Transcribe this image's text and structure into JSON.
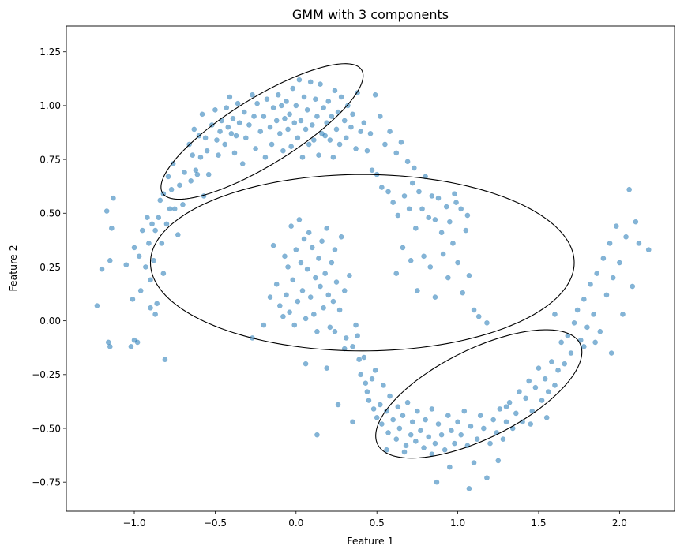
{
  "chart_data": {
    "type": "scatter",
    "title": "GMM with 3 components",
    "xlabel": "Feature 1",
    "ylabel": "Feature 2",
    "xlim": [
      -1.42,
      2.34
    ],
    "ylim": [
      -0.885,
      1.37
    ],
    "xticks": [
      -1.0,
      -0.5,
      0.0,
      0.5,
      1.0,
      1.5,
      2.0
    ],
    "yticks": [
      -0.75,
      -0.5,
      -0.25,
      0.0,
      0.25,
      0.5,
      0.75,
      1.0,
      1.25
    ],
    "xtick_labels": [
      "−1.0",
      "−0.5",
      "0.0",
      "0.5",
      "1.0",
      "1.5",
      "2.0"
    ],
    "ytick_labels": [
      "−0.75",
      "−0.50",
      "−0.25",
      "0.00",
      "0.25",
      "0.50",
      "0.75",
      "1.00",
      "1.25"
    ],
    "grid": false,
    "point_color": "#1f77b4",
    "point_alpha": 0.55,
    "ellipse_color": "#000000",
    "ellipses": [
      {
        "cx": -0.21,
        "cy": 0.88,
        "rx": 0.68,
        "ry": 0.165,
        "angle_deg": 24
      },
      {
        "cx": 0.41,
        "cy": 0.27,
        "rx": 1.31,
        "ry": 0.41,
        "angle_deg": 0
      },
      {
        "cx": 1.13,
        "cy": -0.34,
        "rx": 0.67,
        "ry": 0.215,
        "angle_deg": 19
      }
    ],
    "points": [
      [
        -1.23,
        0.07
      ],
      [
        -1.2,
        0.24
      ],
      [
        -1.17,
        0.51
      ],
      [
        -1.16,
        -0.1
      ],
      [
        -1.15,
        0.28
      ],
      [
        -1.15,
        -0.12
      ],
      [
        -1.14,
        0.43
      ],
      [
        -1.13,
        0.57
      ],
      [
        -1.05,
        0.26
      ],
      [
        -1.02,
        -0.12
      ],
      [
        -1.01,
        0.1
      ],
      [
        -1.0,
        0.34
      ],
      [
        -1.0,
        -0.09
      ],
      [
        -0.98,
        -0.1
      ],
      [
        -0.97,
        0.3
      ],
      [
        -0.96,
        0.14
      ],
      [
        -0.95,
        0.42
      ],
      [
        -0.93,
        0.25
      ],
      [
        -0.92,
        0.48
      ],
      [
        -0.91,
        0.36
      ],
      [
        -0.9,
        0.19
      ],
      [
        -0.9,
        0.06
      ],
      [
        -0.89,
        0.45
      ],
      [
        -0.88,
        0.28
      ],
      [
        -0.87,
        0.03
      ],
      [
        -0.87,
        0.42
      ],
      [
        -0.86,
        0.08
      ],
      [
        -0.85,
        0.48
      ],
      [
        -0.84,
        0.56
      ],
      [
        -0.83,
        0.36
      ],
      [
        -0.82,
        0.22
      ],
      [
        -0.82,
        0.59
      ],
      [
        -0.81,
        -0.18
      ],
      [
        -0.8,
        0.45
      ],
      [
        -0.79,
        0.67
      ],
      [
        -0.78,
        0.52
      ],
      [
        -0.77,
        0.61
      ],
      [
        -0.76,
        0.73
      ],
      [
        -0.75,
        0.52
      ],
      [
        -0.73,
        0.4
      ],
      [
        -0.72,
        0.63
      ],
      [
        -0.7,
        0.54
      ],
      [
        -0.69,
        0.69
      ],
      [
        -0.66,
        0.82
      ],
      [
        -0.65,
        0.65
      ],
      [
        -0.64,
        0.77
      ],
      [
        -0.63,
        0.89
      ],
      [
        -0.62,
        0.7
      ],
      [
        -0.61,
        0.68
      ],
      [
        -0.6,
        0.86
      ],
      [
        -0.59,
        0.76
      ],
      [
        -0.58,
        0.96
      ],
      [
        -0.57,
        0.58
      ],
      [
        -0.56,
        0.85
      ],
      [
        -0.55,
        0.79
      ],
      [
        -0.54,
        0.68
      ],
      [
        -0.52,
        0.91
      ],
      [
        -0.5,
        0.98
      ],
      [
        -0.49,
        0.84
      ],
      [
        -0.48,
        0.77
      ],
      [
        -0.47,
        0.88
      ],
      [
        -0.46,
        0.93
      ],
      [
        -0.44,
        0.82
      ],
      [
        -0.43,
        0.99
      ],
      [
        -0.42,
        0.9
      ],
      [
        -0.41,
        1.04
      ],
      [
        -0.4,
        0.87
      ],
      [
        -0.39,
        0.94
      ],
      [
        -0.38,
        0.78
      ],
      [
        -0.37,
        0.86
      ],
      [
        -0.36,
        1.01
      ],
      [
        -0.35,
        0.92
      ],
      [
        -0.33,
        0.73
      ],
      [
        -0.32,
        0.97
      ],
      [
        -0.31,
        0.85
      ],
      [
        -0.29,
        0.91
      ],
      [
        -0.27,
        1.05
      ],
      [
        -0.26,
        0.95
      ],
      [
        -0.25,
        0.8
      ],
      [
        -0.24,
        1.01
      ],
      [
        -0.22,
        0.88
      ],
      [
        -0.2,
        0.95
      ],
      [
        -0.19,
        0.76
      ],
      [
        -0.18,
        1.03
      ],
      [
        -0.16,
        0.9
      ],
      [
        -0.15,
        0.82
      ],
      [
        -0.14,
        0.99
      ],
      [
        -0.12,
        0.93
      ],
      [
        -0.11,
        1.05
      ],
      [
        -0.1,
        0.87
      ],
      [
        -0.09,
        1.0
      ],
      [
        -0.08,
        0.79
      ],
      [
        -0.07,
        0.94
      ],
      [
        -0.06,
        1.02
      ],
      [
        -0.05,
        0.89
      ],
      [
        -0.04,
        0.96
      ],
      [
        -0.03,
        0.81
      ],
      [
        -0.02,
        1.08
      ],
      [
        -0.01,
        0.92
      ],
      [
        0.0,
        1.0
      ],
      [
        0.01,
        0.85
      ],
      [
        0.02,
        1.12
      ],
      [
        0.03,
        0.93
      ],
      [
        0.04,
        0.76
      ],
      [
        0.05,
        1.04
      ],
      [
        0.06,
        0.89
      ],
      [
        0.07,
        0.98
      ],
      [
        0.08,
        0.82
      ],
      [
        0.09,
        1.11
      ],
      [
        0.1,
        0.91
      ],
      [
        0.11,
        0.84
      ],
      [
        0.12,
        1.03
      ],
      [
        0.13,
        0.95
      ],
      [
        0.14,
        0.77
      ],
      [
        0.15,
        1.1
      ],
      [
        0.16,
        0.87
      ],
      [
        0.17,
        0.99
      ],
      [
        0.18,
        0.86
      ],
      [
        0.19,
        0.92
      ],
      [
        0.2,
        1.02
      ],
      [
        0.21,
        0.84
      ],
      [
        0.22,
        0.95
      ],
      [
        0.23,
        0.76
      ],
      [
        0.24,
        1.07
      ],
      [
        0.25,
        0.89
      ],
      [
        0.26,
        0.97
      ],
      [
        0.27,
        0.82
      ],
      [
        0.28,
        1.04
      ],
      [
        0.3,
        0.93
      ],
      [
        0.31,
        0.85
      ],
      [
        0.32,
        1.0
      ],
      [
        0.34,
        0.9
      ],
      [
        0.35,
        0.96
      ],
      [
        0.37,
        0.8
      ],
      [
        0.38,
        1.06
      ],
      [
        0.4,
        0.88
      ],
      [
        0.42,
        0.92
      ],
      [
        0.44,
        0.79
      ],
      [
        0.46,
        0.87
      ],
      [
        0.47,
        0.7
      ],
      [
        0.49,
        1.05
      ],
      [
        0.5,
        0.68
      ],
      [
        0.52,
        0.95
      ],
      [
        0.53,
        0.62
      ],
      [
        0.55,
        0.82
      ],
      [
        0.57,
        0.6
      ],
      [
        0.58,
        0.88
      ],
      [
        0.6,
        0.55
      ],
      [
        0.62,
        0.78
      ],
      [
        0.63,
        0.49
      ],
      [
        0.65,
        0.83
      ],
      [
        0.67,
        0.58
      ],
      [
        0.69,
        0.74
      ],
      [
        0.7,
        0.52
      ],
      [
        0.72,
        0.64
      ],
      [
        0.73,
        0.71
      ],
      [
        0.74,
        0.43
      ],
      [
        0.76,
        0.6
      ],
      [
        0.78,
        0.52
      ],
      [
        0.8,
        0.67
      ],
      [
        0.82,
        0.48
      ],
      [
        0.84,
        0.58
      ],
      [
        0.86,
        0.47
      ],
      [
        0.88,
        0.57
      ],
      [
        0.9,
        0.41
      ],
      [
        0.93,
        0.53
      ],
      [
        0.95,
        0.46
      ],
      [
        0.98,
        0.59
      ],
      [
        0.99,
        0.55
      ],
      [
        1.02,
        0.52
      ],
      [
        1.06,
        0.49
      ],
      [
        -0.14,
        0.35
      ],
      [
        -0.16,
        0.11
      ],
      [
        -0.12,
        0.17
      ],
      [
        -0.1,
        0.07
      ],
      [
        -0.08,
        0.02
      ],
      [
        -0.07,
        0.3
      ],
      [
        -0.06,
        0.12
      ],
      [
        -0.05,
        0.25
      ],
      [
        -0.04,
        0.04
      ],
      [
        -0.03,
        0.44
      ],
      [
        -0.02,
        0.19
      ],
      [
        -0.01,
        -0.02
      ],
      [
        0.0,
        0.33
      ],
      [
        0.01,
        0.09
      ],
      [
        0.02,
        0.47
      ],
      [
        0.03,
        0.27
      ],
      [
        0.04,
        0.14
      ],
      [
        0.05,
        0.38
      ],
      [
        0.06,
        0.01
      ],
      [
        0.07,
        0.24
      ],
      [
        0.08,
        0.41
      ],
      [
        0.09,
        0.11
      ],
      [
        0.1,
        0.34
      ],
      [
        0.11,
        0.03
      ],
      [
        0.12,
        0.2
      ],
      [
        0.13,
        -0.05
      ],
      [
        0.14,
        0.29
      ],
      [
        0.15,
        0.16
      ],
      [
        0.16,
        0.37
      ],
      [
        0.17,
        0.06
      ],
      [
        0.18,
        0.22
      ],
      [
        0.19,
        0.43
      ],
      [
        0.2,
        0.12
      ],
      [
        0.21,
        -0.03
      ],
      [
        0.22,
        0.27
      ],
      [
        0.23,
        0.09
      ],
      [
        0.24,
        0.33
      ],
      [
        0.25,
        0.18
      ],
      [
        0.27,
        0.05
      ],
      [
        0.28,
        0.39
      ],
      [
        0.3,
        0.14
      ],
      [
        0.31,
        -0.08
      ],
      [
        0.33,
        0.21
      ],
      [
        0.35,
        -0.12
      ],
      [
        0.37,
        -0.02
      ],
      [
        0.39,
        -0.18
      ],
      [
        0.4,
        -0.25
      ],
      [
        0.42,
        -0.17
      ],
      [
        0.43,
        -0.29
      ],
      [
        0.44,
        -0.33
      ],
      [
        0.45,
        -0.37
      ],
      [
        0.47,
        -0.27
      ],
      [
        0.48,
        -0.41
      ],
      [
        0.49,
        -0.23
      ],
      [
        0.5,
        -0.45
      ],
      [
        0.52,
        -0.39
      ],
      [
        0.53,
        -0.48
      ],
      [
        0.54,
        -0.3
      ],
      [
        0.56,
        -0.42
      ],
      [
        0.57,
        -0.52
      ],
      [
        0.58,
        -0.35
      ],
      [
        0.6,
        -0.46
      ],
      [
        0.62,
        -0.55
      ],
      [
        0.63,
        -0.4
      ],
      [
        0.64,
        -0.5
      ],
      [
        0.66,
        -0.44
      ],
      [
        0.68,
        -0.58
      ],
      [
        0.69,
        -0.38
      ],
      [
        0.71,
        -0.53
      ],
      [
        0.72,
        -0.47
      ],
      [
        0.74,
        -0.56
      ],
      [
        0.75,
        -0.42
      ],
      [
        0.77,
        -0.51
      ],
      [
        0.79,
        -0.59
      ],
      [
        0.8,
        -0.46
      ],
      [
        0.82,
        -0.54
      ],
      [
        0.84,
        -0.41
      ],
      [
        0.86,
        -0.57
      ],
      [
        0.87,
        -0.75
      ],
      [
        0.88,
        -0.48
      ],
      [
        0.9,
        -0.53
      ],
      [
        0.92,
        -0.6
      ],
      [
        0.94,
        -0.44
      ],
      [
        0.96,
        -0.51
      ],
      [
        0.98,
        -0.57
      ],
      [
        1.0,
        -0.47
      ],
      [
        1.02,
        -0.53
      ],
      [
        1.04,
        -0.42
      ],
      [
        1.06,
        -0.58
      ],
      [
        1.07,
        -0.78
      ],
      [
        1.08,
        -0.49
      ],
      [
        1.1,
        -0.66
      ],
      [
        1.12,
        -0.55
      ],
      [
        1.14,
        -0.44
      ],
      [
        1.16,
        -0.5
      ],
      [
        1.18,
        -0.73
      ],
      [
        1.2,
        -0.57
      ],
      [
        1.22,
        -0.46
      ],
      [
        1.24,
        -0.52
      ],
      [
        1.26,
        -0.41
      ],
      [
        1.28,
        -0.55
      ],
      [
        1.3,
        -0.47
      ],
      [
        1.32,
        -0.38
      ],
      [
        1.34,
        -0.5
      ],
      [
        1.36,
        -0.43
      ],
      [
        1.38,
        -0.33
      ],
      [
        1.4,
        -0.47
      ],
      [
        1.42,
        -0.36
      ],
      [
        1.44,
        -0.28
      ],
      [
        1.46,
        -0.42
      ],
      [
        1.48,
        -0.31
      ],
      [
        1.5,
        -0.22
      ],
      [
        1.52,
        -0.37
      ],
      [
        1.54,
        -0.27
      ],
      [
        1.56,
        -0.33
      ],
      [
        1.58,
        -0.19
      ],
      [
        1.6,
        -0.3
      ],
      [
        1.62,
        -0.23
      ],
      [
        1.64,
        -0.1
      ],
      [
        1.66,
        -0.2
      ],
      [
        1.68,
        -0.07
      ],
      [
        1.7,
        -0.15
      ],
      [
        1.72,
        -0.01
      ],
      [
        1.74,
        0.05
      ],
      [
        1.76,
        -0.09
      ],
      [
        1.78,
        0.1
      ],
      [
        1.8,
        -0.03
      ],
      [
        1.82,
        0.17
      ],
      [
        1.84,
        0.03
      ],
      [
        1.86,
        0.22
      ],
      [
        1.88,
        -0.05
      ],
      [
        1.9,
        0.29
      ],
      [
        1.92,
        0.12
      ],
      [
        1.94,
        0.36
      ],
      [
        1.96,
        0.2
      ],
      [
        1.98,
        0.44
      ],
      [
        2.0,
        0.27
      ],
      [
        2.02,
        0.03
      ],
      [
        2.04,
        0.39
      ],
      [
        2.06,
        0.61
      ],
      [
        2.08,
        0.16
      ],
      [
        2.1,
        0.46
      ],
      [
        2.12,
        0.36
      ],
      [
        2.18,
        0.33
      ],
      [
        1.25,
        -0.65
      ],
      [
        1.3,
        -0.4
      ],
      [
        1.45,
        -0.48
      ],
      [
        1.55,
        -0.45
      ],
      [
        1.6,
        0.03
      ],
      [
        1.85,
        -0.1
      ],
      [
        1.95,
        -0.15
      ],
      [
        1.78,
        -0.12
      ],
      [
        0.62,
        0.22
      ],
      [
        0.66,
        0.34
      ],
      [
        0.71,
        0.28
      ],
      [
        0.75,
        0.14
      ],
      [
        0.79,
        0.3
      ],
      [
        0.83,
        0.25
      ],
      [
        0.86,
        0.11
      ],
      [
        0.91,
        0.31
      ],
      [
        0.94,
        0.2
      ],
      [
        0.97,
        0.36
      ],
      [
        1.0,
        0.27
      ],
      [
        1.03,
        0.13
      ],
      [
        1.05,
        0.42
      ],
      [
        1.07,
        0.21
      ],
      [
        1.1,
        0.05
      ],
      [
        1.13,
        0.02
      ],
      [
        1.18,
        -0.01
      ],
      [
        0.24,
        -0.05
      ],
      [
        0.3,
        -0.13
      ],
      [
        0.38,
        -0.07
      ],
      [
        0.06,
        -0.2
      ],
      [
        0.19,
        -0.22
      ],
      [
        0.26,
        -0.39
      ],
      [
        0.35,
        -0.47
      ],
      [
        0.13,
        -0.53
      ],
      [
        -0.2,
        -0.02
      ],
      [
        -0.27,
        -0.08
      ],
      [
        0.56,
        -0.6
      ],
      [
        0.67,
        -0.61
      ],
      [
        0.84,
        -0.62
      ],
      [
        0.95,
        -0.68
      ]
    ]
  }
}
